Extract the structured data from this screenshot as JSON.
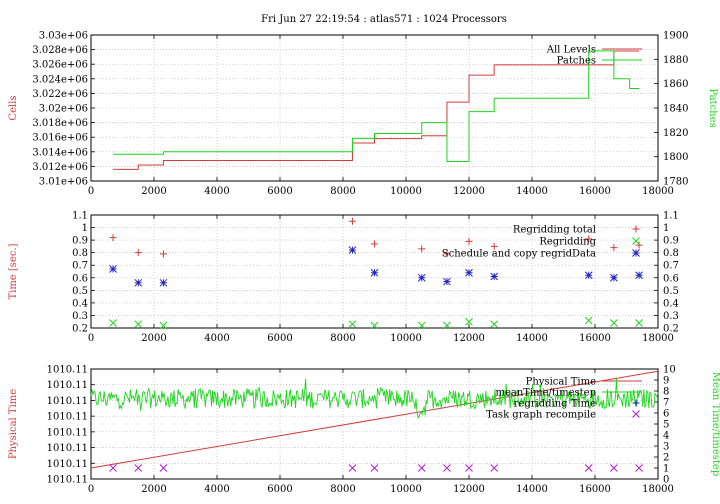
{
  "title": "Fri Jun 27 22:19:54 : atlas571 : 1024 Processors",
  "colors": {
    "red": "#d23c3c",
    "green": "#1fd41f",
    "blue": "#2323c0",
    "magenta": "#b020d0",
    "grid": "#b4b4b4"
  },
  "chart_data": [
    {
      "type": "line",
      "xlim": [
        0,
        18000
      ],
      "xticks": [
        "0",
        "2000",
        "4000",
        "6000",
        "8000",
        "10000",
        "12000",
        "14000",
        "16000",
        "18000"
      ],
      "ylabel": "Cells",
      "y2label": "Patches",
      "ylim": [
        3010000,
        3030000
      ],
      "yticks": [
        "3.01e+06",
        "3.012e+06",
        "3.014e+06",
        "3.016e+06",
        "3.018e+06",
        "3.02e+06",
        "3.022e+06",
        "3.024e+06",
        "3.026e+06",
        "3.028e+06",
        "3.03e+06"
      ],
      "y2lim": [
        1780,
        1900
      ],
      "y2ticks": [
        "1780",
        "1800",
        "1820",
        "1840",
        "1860",
        "1880",
        "1900"
      ],
      "series": [
        {
          "name": "All Levels",
          "axis": "y",
          "color": "red",
          "step": true,
          "x": [
            700,
            1500,
            1500,
            2300,
            2300,
            8300,
            8300,
            9000,
            9000,
            10500,
            10500,
            11300,
            11300,
            12000,
            12000,
            12800,
            12800,
            16600,
            16600,
            17400
          ],
          "y": [
            3011600,
            3011600,
            3012200,
            3012200,
            3012800,
            3012800,
            3015200,
            3015200,
            3015800,
            3015800,
            3016200,
            3016200,
            3020800,
            3020800,
            3024500,
            3024500,
            3025900,
            3025900,
            3027800,
            3027800
          ]
        },
        {
          "name": "Patches",
          "axis": "y2",
          "color": "green",
          "step": true,
          "x": [
            700,
            2300,
            2300,
            8300,
            8300,
            9000,
            9000,
            10500,
            10500,
            11300,
            11300,
            12000,
            12000,
            12800,
            12800,
            15800,
            15800,
            16600,
            16600,
            17100,
            17100,
            17400
          ],
          "y": [
            1802,
            1802,
            1804,
            1804,
            1815,
            1815,
            1819,
            1819,
            1828,
            1828,
            1796,
            1796,
            1837,
            1837,
            1848,
            1848,
            1887,
            1887,
            1864,
            1864,
            1856,
            1856
          ]
        }
      ]
    },
    {
      "type": "scatter",
      "xlim": [
        0,
        18000
      ],
      "xticks": [
        "0",
        "2000",
        "4000",
        "6000",
        "8000",
        "10000",
        "12000",
        "14000",
        "16000",
        "18000"
      ],
      "ylabel": "Time [sec.]",
      "ylim": [
        0.2,
        1.1
      ],
      "yticks": [
        "0.2",
        "0.3",
        "0.4",
        "0.5",
        "0.6",
        "0.7",
        "0.8",
        "0.9",
        "1",
        "1.1"
      ],
      "y2lim": [
        0.2,
        1.1
      ],
      "y2ticks": [
        "0.2",
        "0.3",
        "0.4",
        "0.5",
        "0.6",
        "0.7",
        "0.8",
        "0.9",
        "1",
        "1.1"
      ],
      "series": [
        {
          "name": "Regridding total",
          "marker": "plus",
          "color": "red",
          "x": [
            700,
            1500,
            2300,
            8300,
            9000,
            10500,
            11300,
            12000,
            12800,
            15800,
            16600,
            17400
          ],
          "y": [
            0.92,
            0.8,
            0.79,
            1.05,
            0.87,
            0.83,
            0.79,
            0.89,
            0.85,
            0.91,
            0.84,
            0.86
          ]
        },
        {
          "name": "Regridding",
          "marker": "cross",
          "color": "green",
          "x": [
            700,
            1500,
            2300,
            8300,
            9000,
            10500,
            11300,
            12000,
            12800,
            15800,
            16600,
            17400
          ],
          "y": [
            0.24,
            0.23,
            0.22,
            0.23,
            0.22,
            0.22,
            0.22,
            0.25,
            0.23,
            0.26,
            0.24,
            0.24
          ]
        },
        {
          "name": "Schedule and copy regridData",
          "marker": "star",
          "color": "blue",
          "x": [
            700,
            1500,
            2300,
            8300,
            9000,
            10500,
            11300,
            12000,
            12800,
            15800,
            16600,
            17400
          ],
          "y": [
            0.67,
            0.56,
            0.56,
            0.82,
            0.64,
            0.6,
            0.57,
            0.64,
            0.61,
            0.62,
            0.6,
            0.62
          ]
        }
      ]
    },
    {
      "type": "line",
      "xlim": [
        0,
        18000
      ],
      "xticks": [
        "0",
        "2000",
        "4000",
        "6000",
        "8000",
        "10000",
        "12000",
        "14000",
        "16000",
        "18000"
      ],
      "ylabel": "Physical Time",
      "y2label": "Mean Time/timestep",
      "yticks": [
        "1010.11",
        "1010.11",
        "1010.11",
        "1010.11",
        "1010.11",
        "1010.11",
        "1010.11",
        "1010.11"
      ],
      "y2lim": [
        0,
        10
      ],
      "y2ticks": [
        "0",
        "1",
        "2",
        "3",
        "4",
        "5",
        "6",
        "7",
        "8",
        "9",
        "10"
      ],
      "series": [
        {
          "name": "Physical Time",
          "axis": "y",
          "color": "red",
          "x": [
            0,
            18000
          ],
          "y": [
            0.1,
            0.98
          ]
        },
        {
          "name": "meanTime/timestep",
          "axis": "y2",
          "color": "green",
          "noisy": true,
          "x": [
            0,
            18000
          ],
          "mean": 7.3,
          "amplitude": 0.9
        },
        {
          "name": "regridding Time",
          "axis": "y2",
          "marker": "plus",
          "color": "blue",
          "x": [],
          "y": []
        },
        {
          "name": "Task graph recompile",
          "axis": "y2",
          "marker": "cross",
          "color": "magenta",
          "x": [
            700,
            1500,
            2300,
            8300,
            9000,
            10500,
            11300,
            12000,
            12800,
            15800,
            16600,
            17400
          ],
          "y": [
            1,
            1,
            1,
            1,
            1,
            1,
            1,
            1,
            1,
            1,
            1,
            1
          ]
        }
      ]
    }
  ]
}
